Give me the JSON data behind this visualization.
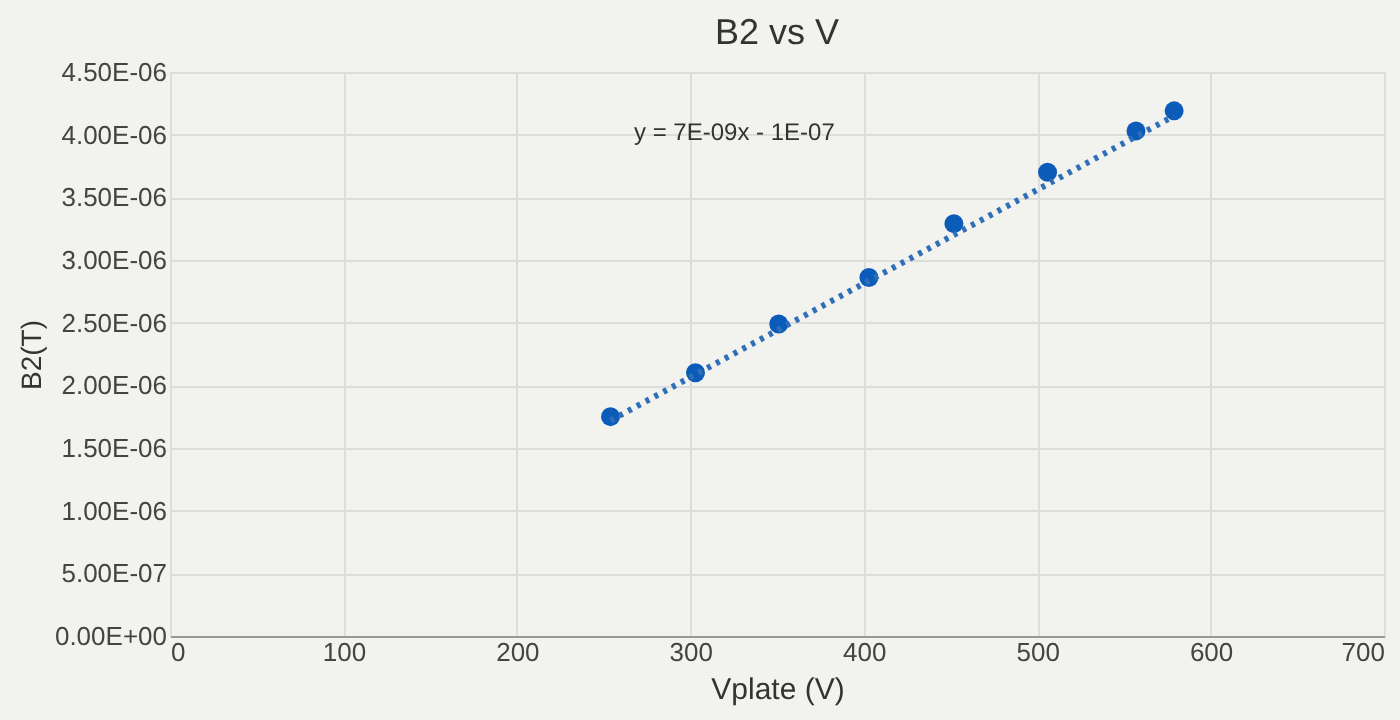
{
  "chart_data": {
    "type": "scatter",
    "title": "B2 vs V",
    "xlabel": "Vplate (V)",
    "ylabel": "B2(T)",
    "x": [
      254,
      303,
      351,
      403,
      452,
      506,
      557,
      579
    ],
    "series": [
      {
        "color": "#0b5cb8",
        "marker": "circle",
        "values": [
          1.75e-06,
          2.1e-06,
          2.49e-06,
          2.86e-06,
          3.29e-06,
          3.7e-06,
          4.03e-06,
          4.19e-06
        ]
      },
      {
        "type": "line",
        "color": "#2f6fb8",
        "line_style": "dotted",
        "marker": "none",
        "x": [
          254,
          579
        ],
        "values": [
          1.72e-06,
          4.15e-06
        ]
      }
    ],
    "annotations": [
      "y = 7E-09x - 1E-07"
    ],
    "xlim": [
      0,
      700
    ],
    "xticks": [
      0,
      100,
      200,
      300,
      400,
      500,
      600,
      700
    ],
    "ylim": [
      0,
      4.5e-06
    ],
    "yticks": [
      {
        "value": 0,
        "label": "0.00E+00"
      },
      {
        "value": 5e-07,
        "label": "5.00E-07"
      },
      {
        "value": 1e-06,
        "label": "1.00E-06"
      },
      {
        "value": 1.5e-06,
        "label": "1.50E-06"
      },
      {
        "value": 2e-06,
        "label": "2.00E-06"
      },
      {
        "value": 2.5e-06,
        "label": "2.50E-06"
      },
      {
        "value": 3e-06,
        "label": "3.00E-06"
      },
      {
        "value": 3.5e-06,
        "label": "3.50E-06"
      },
      {
        "value": 4e-06,
        "label": "4.00E-06"
      },
      {
        "value": 4.5e-06,
        "label": "4.50E-06"
      }
    ],
    "grid": true
  }
}
